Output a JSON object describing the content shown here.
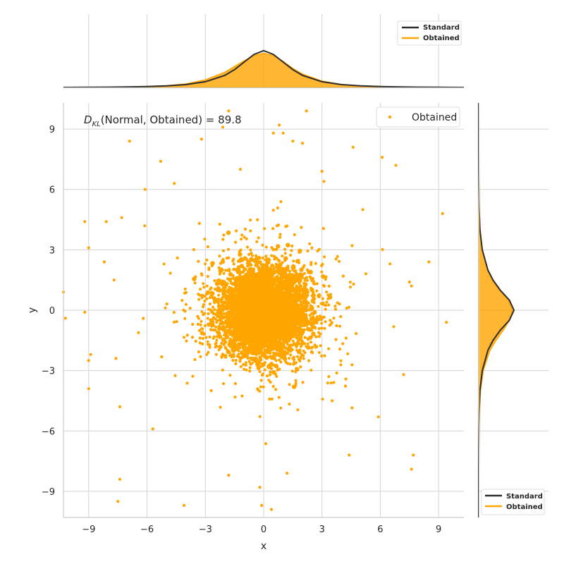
{
  "chart_data": {
    "type": "scatter",
    "xlabel": "x",
    "ylabel": "y",
    "xlim": [
      -10.3,
      10.3
    ],
    "ylim": [
      -10.3,
      10.3
    ],
    "x_ticks": [
      "-9",
      "-6",
      "-3",
      "0",
      "3",
      "6",
      "9"
    ],
    "y_ticks": [
      "-9",
      "-6",
      "-3",
      "0",
      "3",
      "6",
      "9"
    ],
    "grid": true,
    "annotation": {
      "symbol": "D",
      "subscript": "KL",
      "text": "(Normal, Obtained) = 89.8"
    },
    "series": [
      {
        "name": "Obtained",
        "color": "#ffa500",
        "kind": "scatter",
        "distribution": "heavy-tailed, centered at (0, 0)",
        "approx_point_count": 20000,
        "sample_points": [
          [
            -10.3,
            0.9
          ],
          [
            -10.2,
            -0.4
          ],
          [
            -9.2,
            4.4
          ],
          [
            -9.0,
            3.1
          ],
          [
            -9.2,
            -0.1
          ],
          [
            -8.9,
            -2.2
          ],
          [
            -9.0,
            -2.5
          ],
          [
            -9.0,
            -3.9
          ],
          [
            -8.1,
            4.4
          ],
          [
            -7.3,
            4.6
          ],
          [
            -7.6,
            -2.4
          ],
          [
            -7.4,
            -4.8
          ],
          [
            -7.4,
            -8.4
          ],
          [
            -7.5,
            -9.5
          ],
          [
            -4.1,
            -9.7
          ],
          [
            -1.8,
            -8.2
          ],
          [
            -0.2,
            -8.8
          ],
          [
            -0.1,
            -9.7
          ],
          [
            0.4,
            -9.9
          ],
          [
            1.2,
            -8.1
          ],
          [
            4.4,
            -7.2
          ],
          [
            7.6,
            -7.9
          ],
          [
            7.7,
            -7.2
          ],
          [
            9.2,
            4.8
          ],
          [
            9.4,
            -0.6
          ],
          [
            8.5,
            2.4
          ],
          [
            7.6,
            1.2
          ],
          [
            7.5,
            1.4
          ],
          [
            6.8,
            7.2
          ],
          [
            6.1,
            7.6
          ],
          [
            4.6,
            8.1
          ],
          [
            0.5,
            8.8
          ],
          [
            1.0,
            8.8
          ],
          [
            1.5,
            8.4
          ],
          [
            2.0,
            8.3
          ],
          [
            2.2,
            9.9
          ],
          [
            -1.8,
            9.9
          ],
          [
            -2.1,
            9.1
          ],
          [
            -3.2,
            8.5
          ],
          [
            -6.9,
            8.4
          ],
          [
            -5.3,
            7.4
          ],
          [
            -6.1,
            6.0
          ],
          [
            -4.6,
            6.3
          ],
          [
            -1.2,
            7.0
          ],
          [
            0.8,
            9.2
          ],
          [
            3.0,
            6.9
          ],
          [
            3.1,
            6.4
          ],
          [
            5.1,
            5.0
          ],
          [
            -8.2,
            2.4
          ],
          [
            -7.7,
            1.5
          ],
          [
            7.2,
            -3.2
          ],
          [
            5.9,
            -5.3
          ],
          [
            6.5,
            2.3
          ],
          [
            -5.7,
            -5.9
          ]
        ]
      }
    ],
    "legend": {
      "entries": [
        "Obtained"
      ],
      "position": "top-right"
    },
    "marginals": {
      "top": {
        "orientation": "x",
        "series": [
          {
            "name": "Standard",
            "color": "#2e2e2e",
            "kind": "line",
            "x": [
              -10.3,
              -9,
              -8,
              -7,
              -6,
              -5,
              -4,
              -3,
              -2,
              -1.5,
              -1,
              -0.5,
              0,
              0.5,
              1,
              1.5,
              2,
              3,
              4,
              5,
              6,
              7,
              8,
              9,
              10.3
            ],
            "density": [
              0.0,
              0.001,
              0.002,
              0.004,
              0.007,
              0.012,
              0.022,
              0.045,
              0.095,
              0.14,
              0.2,
              0.26,
              0.29,
              0.26,
              0.2,
              0.14,
              0.095,
              0.045,
              0.022,
              0.012,
              0.007,
              0.004,
              0.002,
              0.001,
              0.0
            ]
          },
          {
            "name": "Obtained",
            "color": "#ffa500",
            "kind": "area",
            "x": [
              -10.3,
              -9,
              -8,
              -7,
              -6,
              -5,
              -4,
              -3,
              -2,
              -1.5,
              -1,
              -0.5,
              0,
              0.5,
              1,
              1.5,
              2,
              3,
              4,
              5,
              6,
              7,
              8,
              9,
              10.3
            ],
            "density": [
              0.0,
              0.001,
              0.002,
              0.004,
              0.008,
              0.014,
              0.028,
              0.06,
              0.12,
              0.165,
              0.21,
              0.25,
              0.27,
              0.25,
              0.205,
              0.15,
              0.105,
              0.05,
              0.024,
              0.013,
              0.007,
              0.004,
              0.002,
              0.001,
              0.0
            ]
          }
        ],
        "legend": {
          "entries": [
            "Standard",
            "Obtained"
          ],
          "position": "top-right"
        }
      },
      "right": {
        "orientation": "y",
        "series": [
          {
            "name": "Standard",
            "color": "#2e2e2e",
            "kind": "line",
            "y": [
              -10.3,
              -9,
              -8,
              -7,
              -6,
              -5,
              -4,
              -3,
              -2,
              -1.5,
              -1,
              -0.5,
              0,
              0.5,
              1,
              1.5,
              2,
              3,
              4,
              5,
              6,
              7,
              8,
              9,
              10.3
            ],
            "density": [
              0.0,
              0.0,
              0.0,
              0.001,
              0.002,
              0.005,
              0.012,
              0.035,
              0.09,
              0.14,
              0.21,
              0.3,
              0.345,
              0.3,
              0.21,
              0.14,
              0.09,
              0.035,
              0.012,
              0.005,
              0.002,
              0.001,
              0.0,
              0.0,
              0.0
            ]
          },
          {
            "name": "Obtained",
            "color": "#ffa500",
            "kind": "area",
            "y": [
              -10.3,
              -9,
              -8,
              -7,
              -6,
              -5,
              -4,
              -3,
              -2,
              -1.5,
              -1,
              -0.5,
              0,
              0.5,
              1,
              1.5,
              2,
              3,
              4,
              5,
              6,
              7,
              8,
              9,
              10.3
            ],
            "density": [
              0.0,
              0.0,
              0.001,
              0.002,
              0.004,
              0.008,
              0.018,
              0.045,
              0.11,
              0.17,
              0.24,
              0.3,
              0.33,
              0.29,
              0.2,
              0.13,
              0.085,
              0.035,
              0.014,
              0.006,
              0.003,
              0.001,
              0.0,
              0.0,
              0.0
            ]
          }
        ],
        "legend": {
          "entries": [
            "Standard",
            "Obtained"
          ],
          "position": "bottom-right"
        }
      }
    }
  }
}
